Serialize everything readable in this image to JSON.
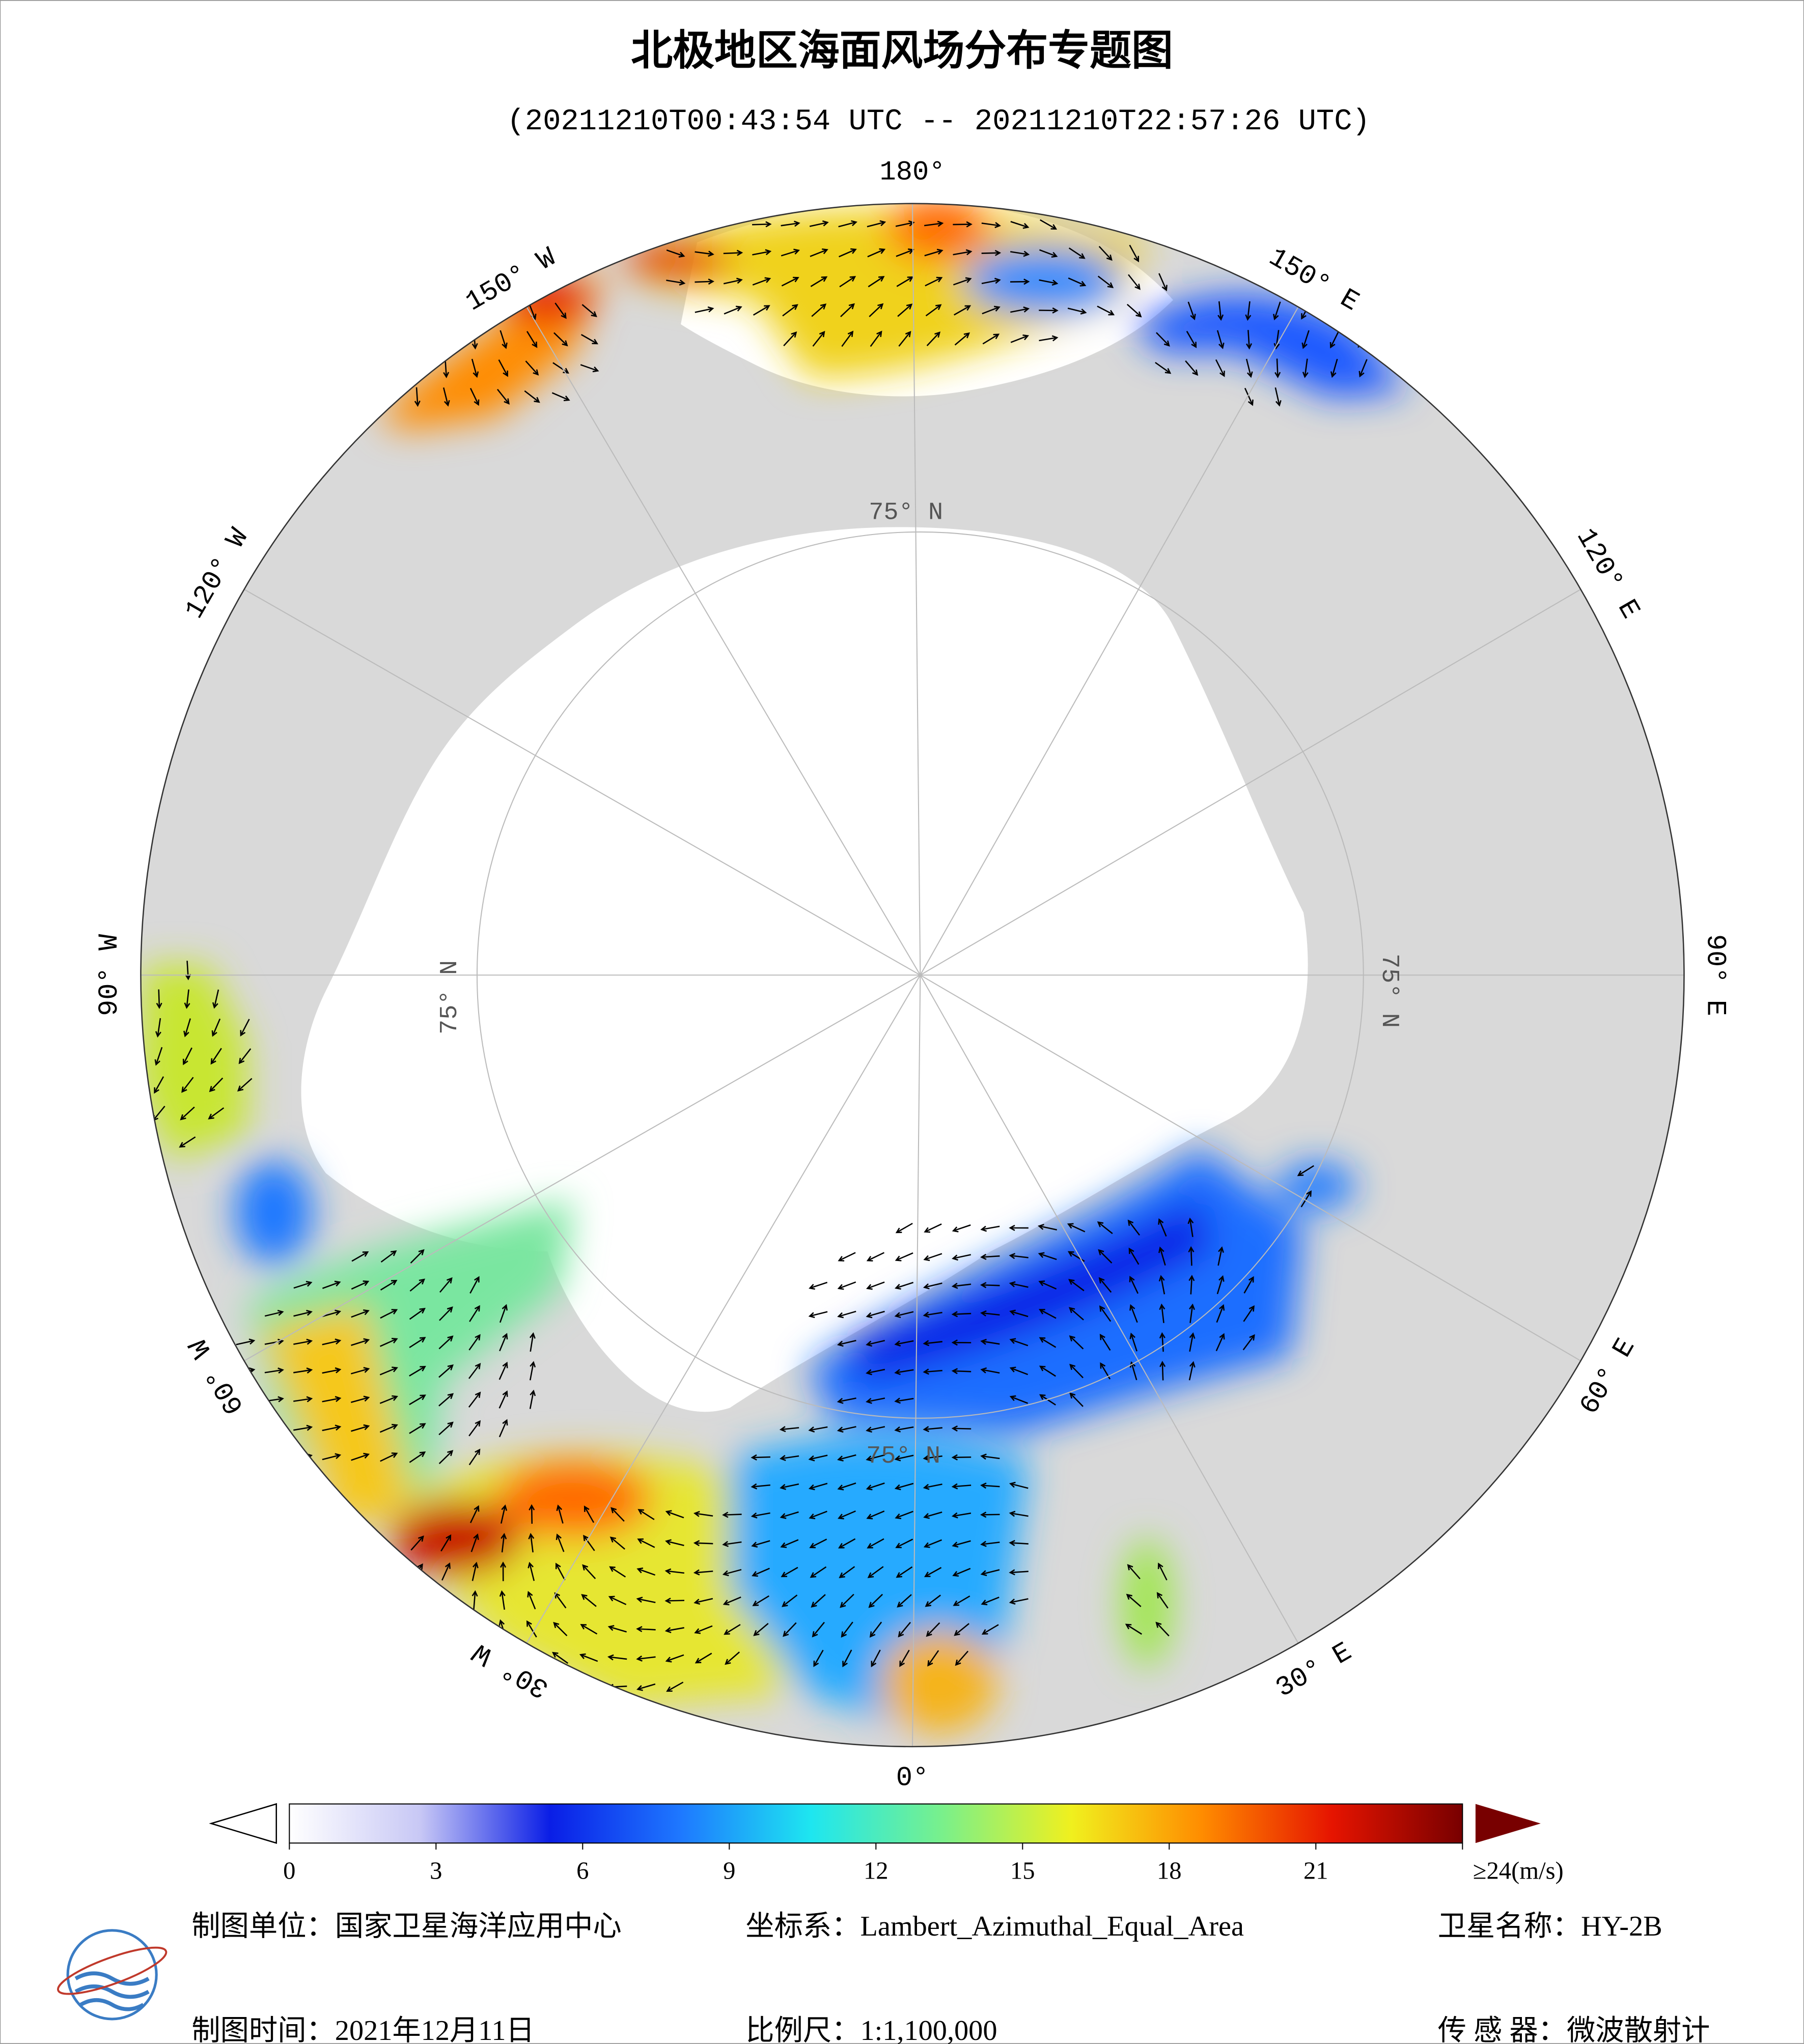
{
  "header": {
    "title": "北极地区海面风场分布专题图",
    "subtitle": "(20211210T00:43:54 UTC -- 20211210T22:57:26 UTC)"
  },
  "map": {
    "longitude_labels": [
      "0°",
      "30° E",
      "60° E",
      "90° E",
      "120° E",
      "150° E",
      "180°",
      "150° W",
      "120° W",
      "90° W",
      "60° W",
      "30° W"
    ],
    "latitude_labels": [
      "75° N",
      "75° N",
      "75° N",
      "75° N"
    ]
  },
  "colorbar": {
    "range": [
      0,
      24
    ],
    "ticks": [
      0,
      3,
      6,
      9,
      12,
      15,
      18,
      21,
      {
        "value": 24,
        "label": "≥24(m/s)"
      }
    ],
    "colors": [
      "#ffffff",
      "#c8c8f5",
      "#0a1ee6",
      "#1e78ff",
      "#1ee6f0",
      "#78f08c",
      "#f0f01e",
      "#ff8c00",
      "#e61400",
      "#780000"
    ]
  },
  "footer": {
    "rows": [
      [
        "制图单位：国家卫星海洋应用中心",
        "坐标系：Lambert_Azimuthal_Equal_Area",
        "卫星名称：HY-2B"
      ],
      [
        "制图时间：2021年12月11日",
        "比例尺：1:1,100,000",
        "传 感 器：微波散射计"
      ]
    ]
  }
}
